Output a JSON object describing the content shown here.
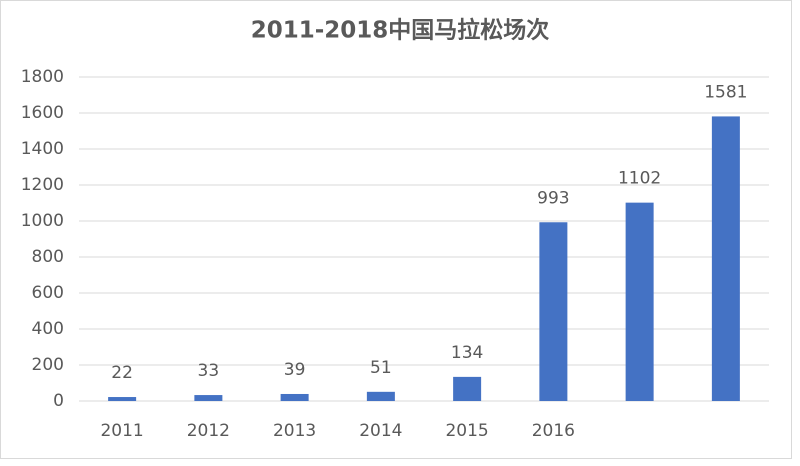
{
  "chart_data": {
    "type": "bar",
    "title": "2011-2018中国马拉松场次",
    "categories": [
      "2011",
      "2012",
      "2013",
      "2014",
      "2015",
      "2016",
      null,
      null
    ],
    "values": [
      22,
      33,
      39,
      51,
      134,
      993,
      1102,
      1581
    ],
    "color": "#4472c4",
    "ylim": [
      0,
      1800
    ],
    "yticks": [
      0,
      200,
      400,
      600,
      800,
      1000,
      1200,
      1400,
      1600,
      1800
    ],
    "grid": true
  }
}
